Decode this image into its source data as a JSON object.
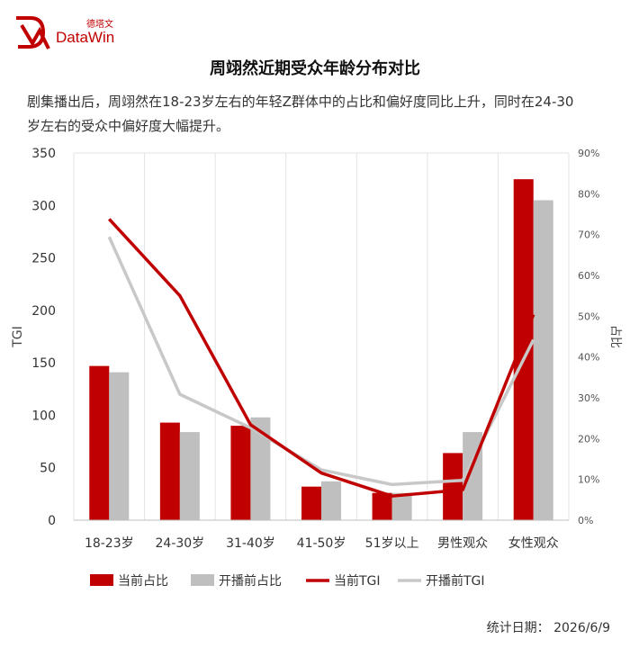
{
  "brand": {
    "cn": "德塔文",
    "name": "DataWin",
    "color": "#c00000"
  },
  "title": "周翊然近期受众年龄分布对比",
  "description": "剧集播出后，周翊然在18-23岁左右的年轻Z群体中的占比和偏好度同比上升，同时在24-30岁左右的受众中偏好度大幅提升。",
  "footer": "统计日期： 2026/6/9",
  "chart_data": {
    "type": "bar",
    "categories": [
      "18-23岁",
      "24-30岁",
      "31-40岁",
      "41-50岁",
      "51岁以上",
      "男性观众",
      "女性观众"
    ],
    "series": [
      {
        "name": "当前占比",
        "kind": "bar",
        "axis": "left",
        "color": "#c00000",
        "values": [
          147,
          93,
          90,
          32,
          26,
          64,
          325
        ]
      },
      {
        "name": "开播前占比",
        "kind": "bar",
        "axis": "left",
        "color": "#bfbfbf",
        "values": [
          141,
          84,
          98,
          37,
          26,
          84,
          305
        ]
      },
      {
        "name": "当前TGI",
        "kind": "line",
        "axis": "left",
        "color": "#c00000",
        "values": [
          287,
          214,
          91,
          45,
          23,
          29,
          196
        ]
      },
      {
        "name": "开播前TGI",
        "kind": "line",
        "axis": "left",
        "color": "#c8c8c8",
        "values": [
          270,
          120,
          88,
          48,
          34,
          38,
          172
        ]
      }
    ],
    "ylabel": "TGI",
    "ylabel2": "占比",
    "ylim": [
      0,
      350
    ],
    "yticks": [
      "0",
      "50",
      "100",
      "150",
      "200",
      "250",
      "300",
      "350"
    ],
    "y2lim": [
      0,
      90
    ],
    "y2ticks": [
      "0%",
      "10%",
      "20%",
      "30%",
      "40%",
      "50%",
      "60%",
      "70%",
      "80%",
      "90%"
    ],
    "grid": true,
    "legend_position": "bottom"
  }
}
